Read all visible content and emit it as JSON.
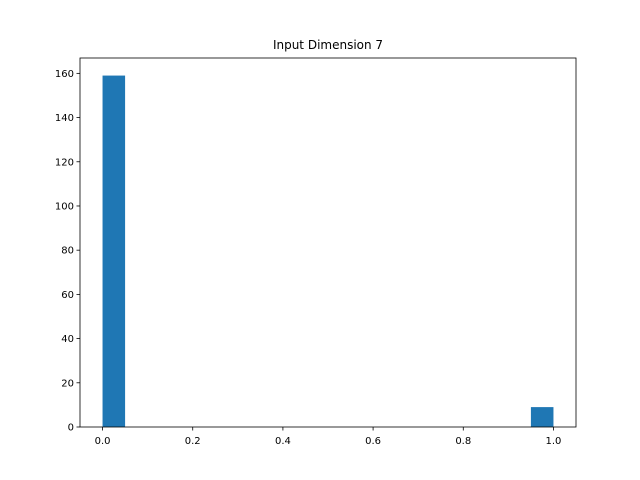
{
  "chart_data": {
    "type": "histogram",
    "title": "Input Dimension 7",
    "bins": [
      0,
      0.05,
      0.1,
      0.15,
      0.2,
      0.25,
      0.3,
      0.35,
      0.4,
      0.45,
      0.5,
      0.55,
      0.6,
      0.65,
      0.7,
      0.75,
      0.8,
      0.85,
      0.9,
      0.95,
      1
    ],
    "values": [
      159,
      0,
      0,
      0,
      0,
      0,
      0,
      0,
      0,
      0,
      0,
      0,
      0,
      0,
      0,
      0,
      0,
      0,
      0,
      9
    ],
    "color": "#1f77b4",
    "xlim": [
      -0.05,
      1.05
    ],
    "xticks": [
      {
        "value": 0,
        "label": "0.0"
      },
      0.2,
      0.4,
      0.6,
      0.8,
      {
        "value": 1,
        "label": "1.0"
      }
    ],
    "ylim": [
      0,
      166.95
    ],
    "yticks": [
      0,
      20,
      40,
      60,
      80,
      100,
      120,
      140,
      160
    ],
    "grid": false
  }
}
